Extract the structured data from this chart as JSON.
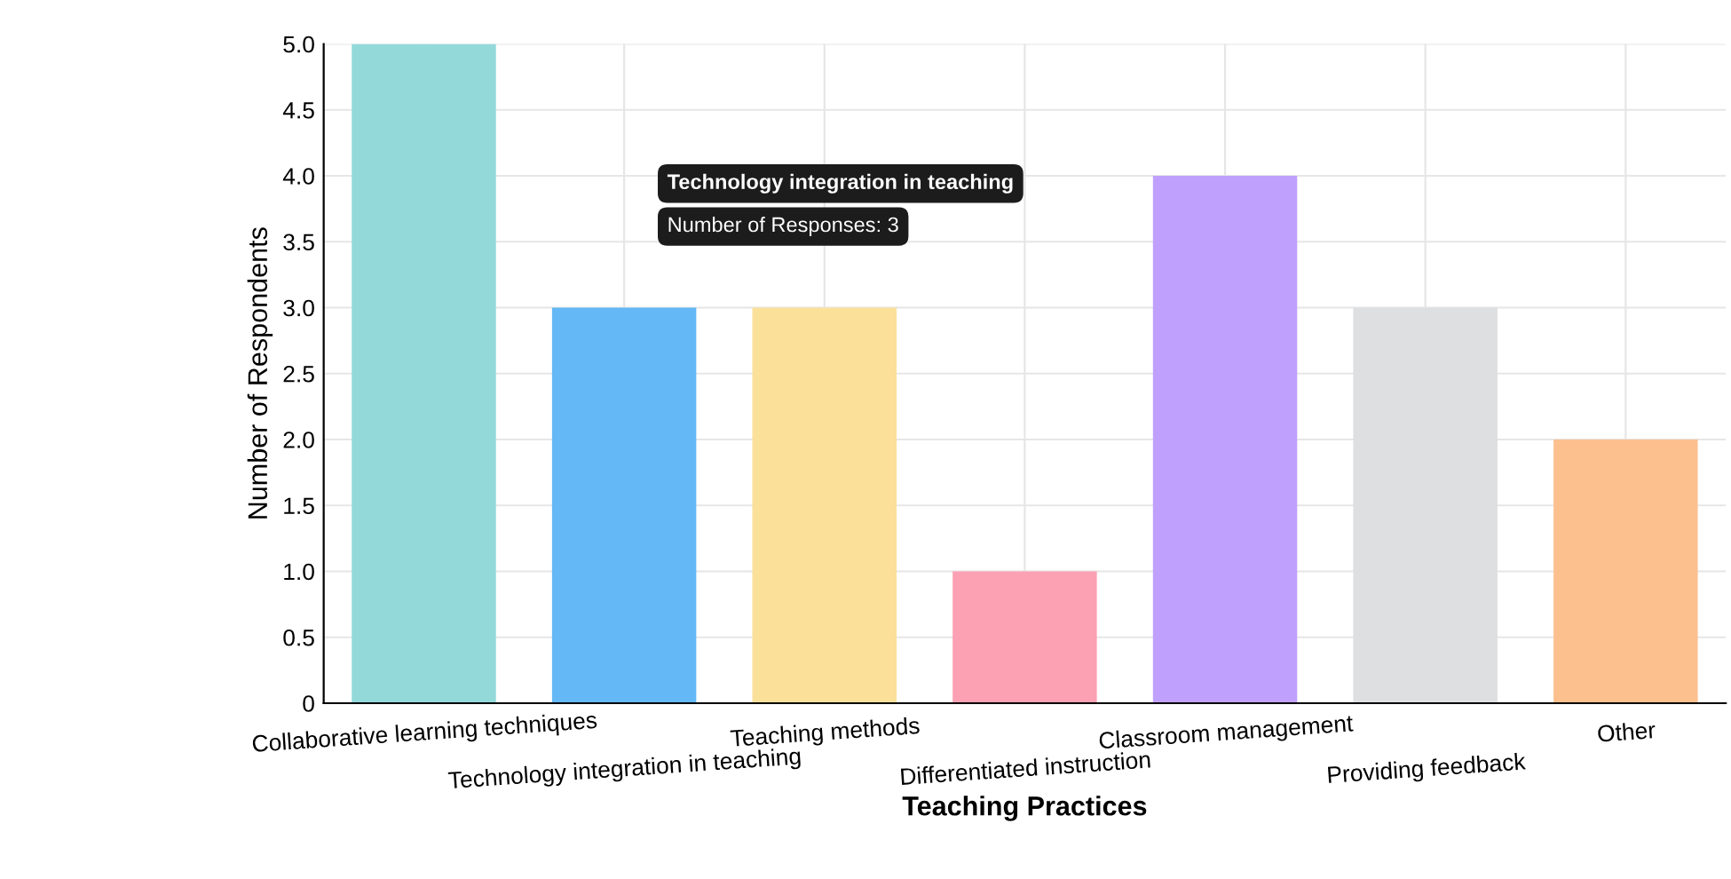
{
  "chart_data": {
    "type": "bar",
    "xlabel": "Teaching Practices",
    "ylabel": "Number of Respondents",
    "categories": [
      "Collaborative learning techniques",
      "Technology integration in teaching",
      "Teaching methods",
      "Differentiated instruction",
      "Classroom management",
      "Providing feedback",
      "Other"
    ],
    "values": [
      5,
      3,
      3,
      1,
      4,
      3,
      2
    ],
    "colors": [
      "#93d9d9",
      "#63b8f5",
      "#fbe099",
      "#fca0b3",
      "#c0a0fd",
      "#dedfe1",
      "#fcc08f"
    ],
    "ylim": [
      0,
      5
    ],
    "yticks": [
      0,
      0.5,
      {
        "value": 1,
        "label": "1.0"
      },
      1.5,
      {
        "value": 2,
        "label": "2.0"
      },
      2.5,
      {
        "value": 3,
        "label": "3.0"
      },
      3.5,
      {
        "value": 4,
        "label": "4.0"
      },
      4.5,
      {
        "value": 5,
        "label": "5.0"
      }
    ],
    "grid": true,
    "annotations": [
      "Technology integration in teaching",
      "Number of Responses: 3"
    ]
  }
}
